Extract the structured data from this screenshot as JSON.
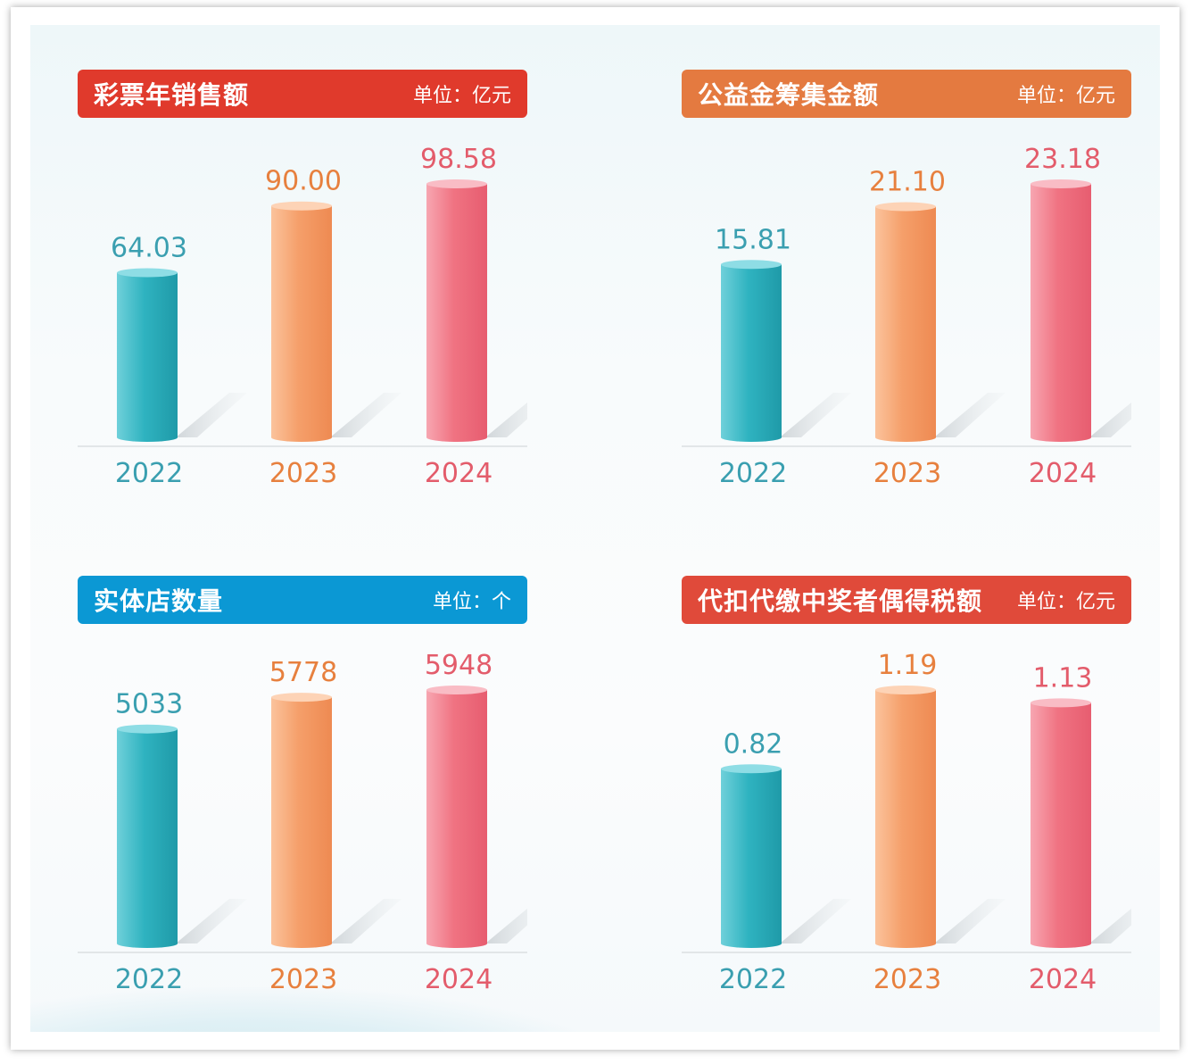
{
  "colors": {
    "teal": "#2bb0bd",
    "orange": "#f39a63",
    "pink": "#ee6c7c",
    "label_teal": "#3a9fb0",
    "label_orange": "#e7803e",
    "label_pink": "#e35c6b"
  },
  "panels": [
    {
      "header_color": "#e03a2c",
      "title": "彩票年销售额",
      "unit": "单位：亿元",
      "chart_data": {
        "type": "bar",
        "categories": [
          "2022",
          "2023",
          "2024"
        ],
        "values": [
          64.03,
          90.0,
          98.58
        ],
        "value_labels": [
          "64.03",
          "90.00",
          "98.58"
        ],
        "title": "彩票年销售额",
        "unit": "单位：亿元"
      }
    },
    {
      "header_color": "#e47a40",
      "title": "公益金筹集金额",
      "unit": "单位：亿元",
      "chart_data": {
        "type": "bar",
        "categories": [
          "2022",
          "2023",
          "2024"
        ],
        "values": [
          15.81,
          21.1,
          23.18
        ],
        "value_labels": [
          "15.81",
          "21.10",
          "23.18"
        ],
        "title": "公益金筹集金额",
        "unit": "单位：亿元"
      }
    },
    {
      "header_color": "#0b98d4",
      "title": "实体店数量",
      "unit": "单位：个",
      "chart_data": {
        "type": "bar",
        "categories": [
          "2022",
          "2023",
          "2024"
        ],
        "values": [
          5033,
          5778,
          5948
        ],
        "value_labels": [
          "5033",
          "5778",
          "5948"
        ],
        "title": "实体店数量",
        "unit": "单位：个"
      }
    },
    {
      "header_color": "#e04a3a",
      "title": "代扣代缴中奖者偶得税额",
      "unit": "单位：亿元",
      "chart_data": {
        "type": "bar",
        "categories": [
          "2022",
          "2023",
          "2024"
        ],
        "values": [
          0.82,
          1.19,
          1.13
        ],
        "value_labels": [
          "0.82",
          "1.19",
          "1.13"
        ],
        "title": "代扣代缴中奖者偶得税额",
        "unit": "单位：亿元"
      }
    }
  ]
}
